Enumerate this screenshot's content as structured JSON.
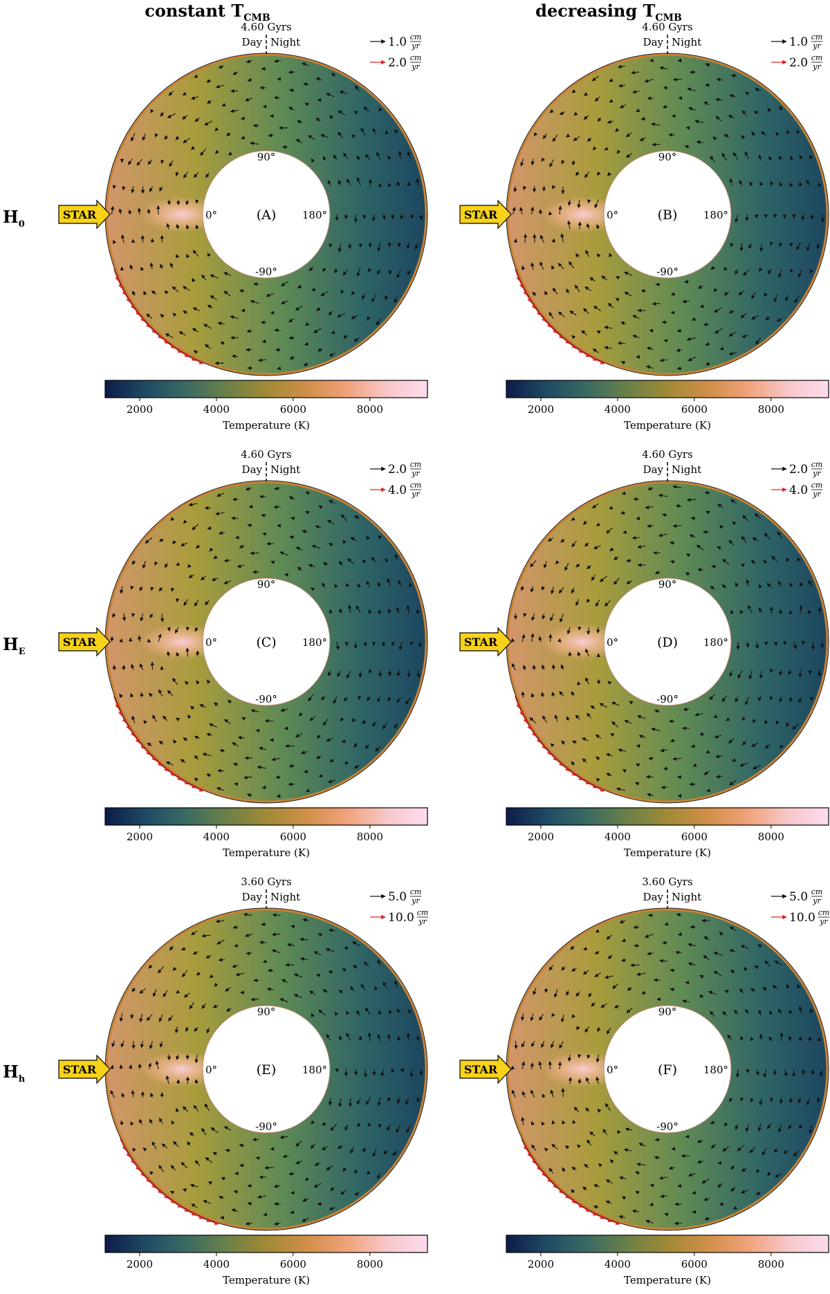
{
  "columns": [
    {
      "title_main": "constant T",
      "title_sub": "CMB"
    },
    {
      "title_main": "decreasing T",
      "title_sub": "CMB"
    }
  ],
  "rows": [
    {
      "label_main": "H",
      "label_sub": "0",
      "time": "4.60 Gyrs",
      "legend_black": "1.0",
      "legend_red": "2.0"
    },
    {
      "label_main": "H",
      "label_sub": "E",
      "time": "4.60 Gyrs",
      "legend_black": "2.0",
      "legend_red": "4.0"
    },
    {
      "label_main": "H",
      "label_sub": "h",
      "time": "3.60 Gyrs",
      "legend_black": "5.0",
      "legend_red": "10.0"
    }
  ],
  "panels": [
    "(A)",
    "(B)",
    "(C)",
    "(D)",
    "(E)",
    "(F)"
  ],
  "labels": {
    "day": "Day",
    "night": "Night",
    "star": "STAR",
    "angle_0": "0°",
    "angle_90": "90°",
    "angle_m90": "-90°",
    "angle_180": "180°",
    "unit_num": "cm",
    "unit_den": "yr"
  },
  "colorbar": {
    "label": "Temperature (K)",
    "range": [
      1100,
      9500
    ],
    "ticks": [
      2000,
      4000,
      6000,
      8000
    ],
    "tick_labels": [
      "2000",
      "4000",
      "6000",
      "8000"
    ],
    "colors": [
      "#0d1b4a",
      "#1f4a63",
      "#3a6a63",
      "#6a8048",
      "#a08a35",
      "#d08f48",
      "#f1a27a",
      "#f7c7c9",
      "#fcdcef"
    ]
  },
  "colors": {
    "arrow_black": "#111111",
    "arrow_red": "#e0201d",
    "star_fill": "#f7d218",
    "outline_orange": "#c98233"
  }
}
